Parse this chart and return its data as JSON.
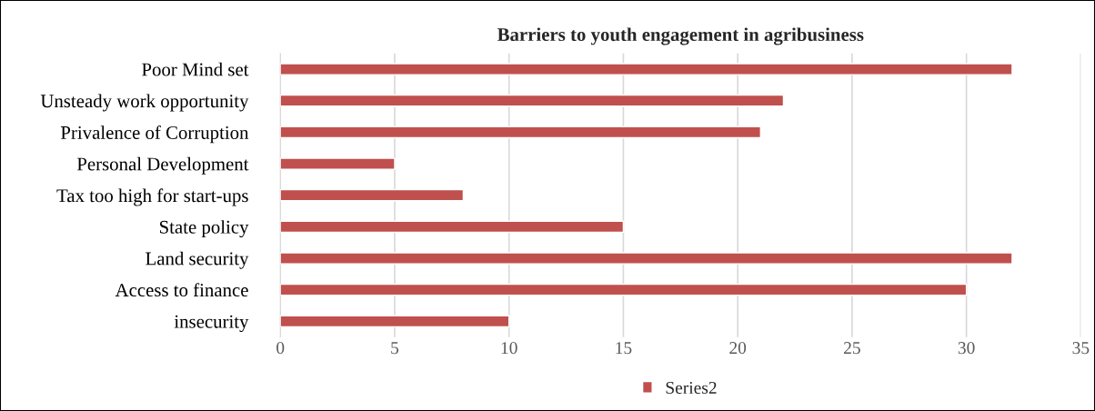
{
  "chart_data": {
    "type": "bar",
    "orientation": "horizontal",
    "title": "Barriers to youth engagement in agribusiness",
    "categories": [
      "Poor Mind set",
      "Unsteady work opportunity",
      "Privalence of Corruption",
      "Personal Development",
      "Tax too high for start-ups",
      "State policy",
      "Land security",
      "Access to finance",
      "insecurity"
    ],
    "series": [
      {
        "name": "Series2",
        "color": "#c0504d",
        "values": [
          32,
          22,
          21,
          5,
          8,
          15,
          32,
          30,
          10
        ]
      }
    ],
    "xlim": [
      0,
      35
    ],
    "xticks": [
      0,
      5,
      10,
      15,
      20,
      25,
      30,
      35
    ],
    "grid": "x",
    "legend": "bottom"
  }
}
